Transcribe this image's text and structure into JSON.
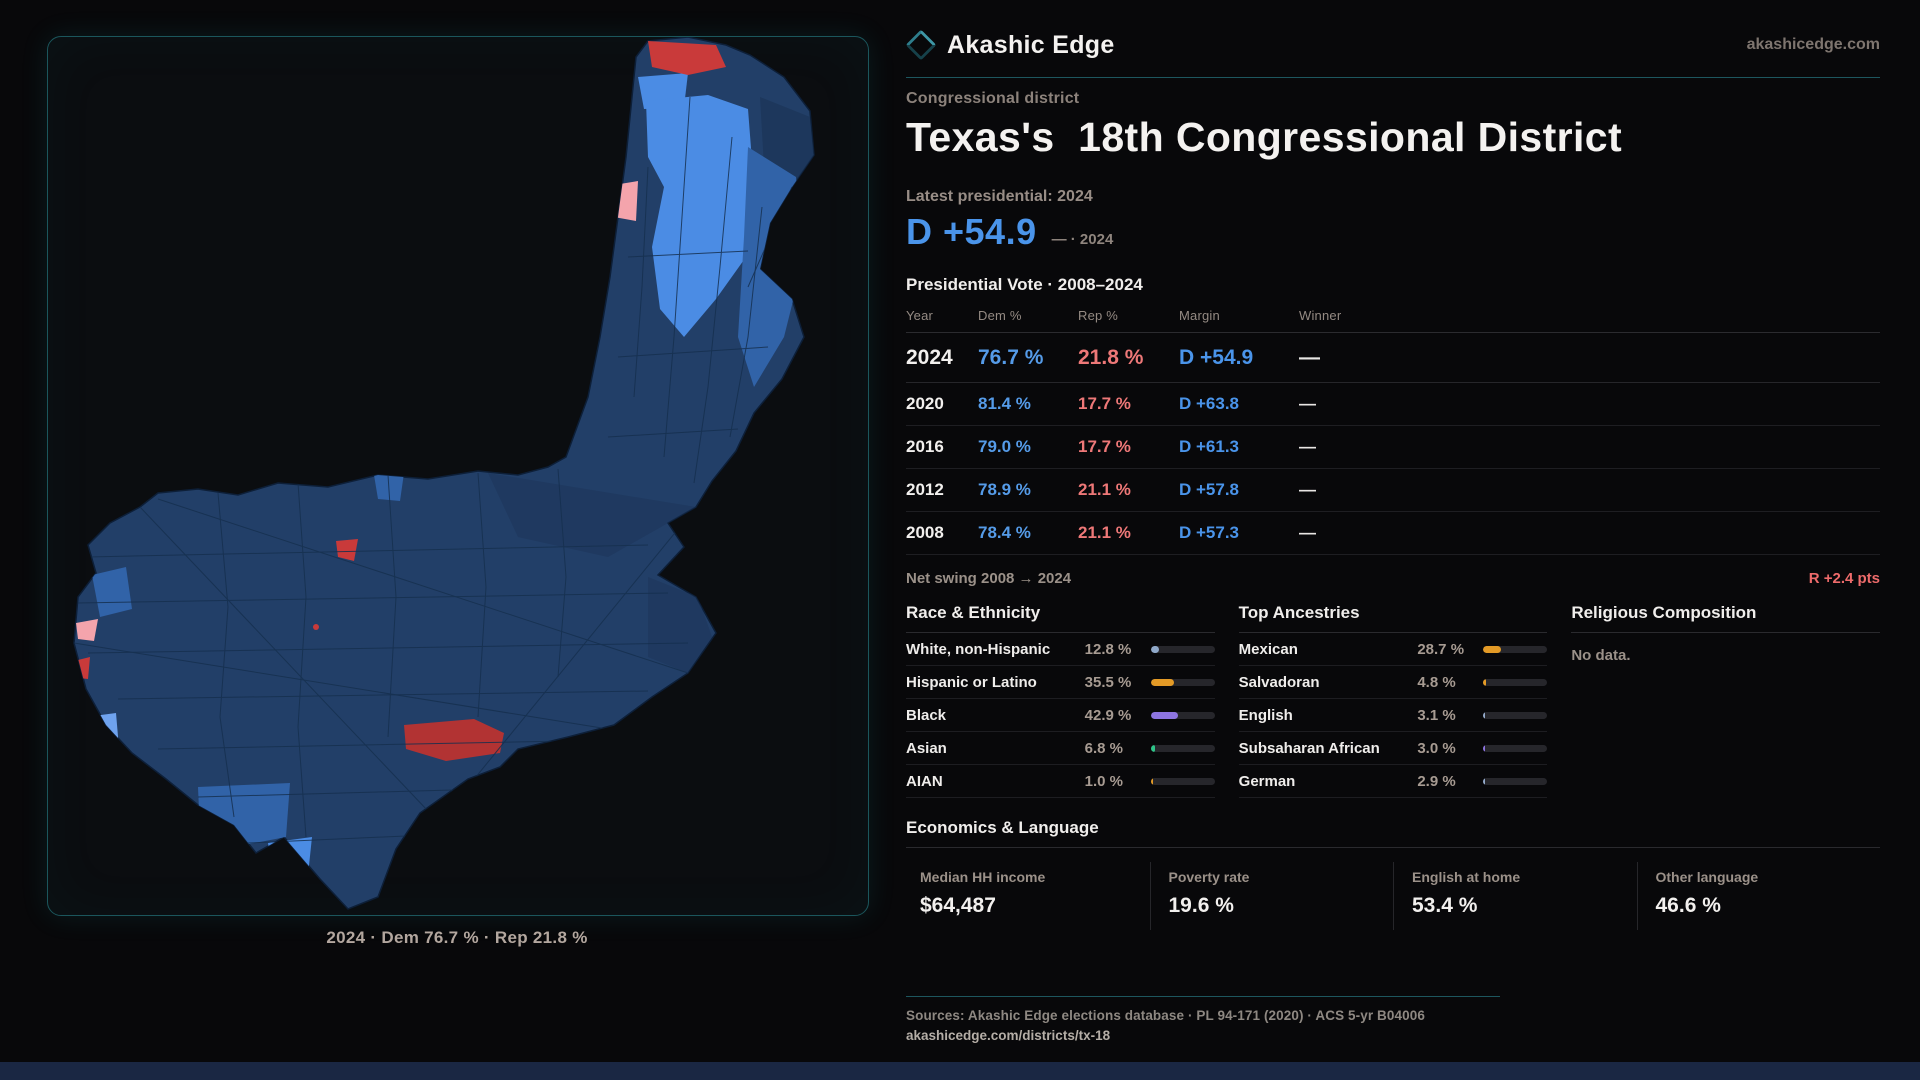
{
  "brand": {
    "name": "Akashic Edge",
    "site": "akashicedge.com"
  },
  "page": {
    "kicker": "Congressional district",
    "title": "Texas's  18th Congressional District",
    "latest_label": "Latest presidential: 2024",
    "headline_margin": "D +54.9",
    "headline_note": "— · 2024"
  },
  "vote_table": {
    "title": "Presidential Vote · 2008–2024",
    "columns": [
      "Year",
      "Dem %",
      "Rep %",
      "Margin",
      "Winner"
    ],
    "rows": [
      {
        "year": "2024",
        "dem": "76.7 %",
        "rep": "21.8 %",
        "margin": "D +54.9",
        "winner": "—"
      },
      {
        "year": "2020",
        "dem": "81.4 %",
        "rep": "17.7 %",
        "margin": "D +63.8",
        "winner": "—"
      },
      {
        "year": "2016",
        "dem": "79.0 %",
        "rep": "17.7 %",
        "margin": "D +61.3",
        "winner": "—"
      },
      {
        "year": "2012",
        "dem": "78.9 %",
        "rep": "21.1 %",
        "margin": "D +57.8",
        "winner": "—"
      },
      {
        "year": "2008",
        "dem": "78.4 %",
        "rep": "21.1 %",
        "margin": "D +57.3",
        "winner": "—"
      }
    ],
    "net_swing_label": "Net swing 2008 → 2024",
    "net_swing_value": "R +2.4 pts"
  },
  "race": {
    "title": "Race & Ethnicity",
    "rows": [
      {
        "label": "White, non-Hispanic",
        "value": "12.8 %",
        "pct": 12.8,
        "color": "#8FA8C9"
      },
      {
        "label": "Hispanic or Latino",
        "value": "35.5 %",
        "pct": 35.5,
        "color": "#E39A26"
      },
      {
        "label": "Black",
        "value": "42.9 %",
        "pct": 42.9,
        "color": "#8D74E0"
      },
      {
        "label": "Asian",
        "value": "6.8 %",
        "pct": 6.8,
        "color": "#2EC488"
      },
      {
        "label": "AIAN",
        "value": "1.0 %",
        "pct": 1.0,
        "color": "#E39A26"
      }
    ]
  },
  "ancestries": {
    "title": "Top Ancestries",
    "rows": [
      {
        "label": "Mexican",
        "value": "28.7 %",
        "pct": 28.7,
        "color": "#E39A26"
      },
      {
        "label": "Salvadoran",
        "value": "4.8 %",
        "pct": 4.8,
        "color": "#E39A26"
      },
      {
        "label": "English",
        "value": "3.1 %",
        "pct": 3.1,
        "color": "#93A9C9"
      },
      {
        "label": "Subsaharan African",
        "value": "3.0 %",
        "pct": 3.0,
        "color": "#8D74E0"
      },
      {
        "label": "German",
        "value": "2.9 %",
        "pct": 2.9,
        "color": "#93A9C9"
      }
    ]
  },
  "religion": {
    "title": "Religious Composition",
    "empty": "No data."
  },
  "economics": {
    "title": "Economics & Language",
    "stats": [
      {
        "label": "Median HH income",
        "value": "$64,487"
      },
      {
        "label": "Poverty rate",
        "value": "19.6 %"
      },
      {
        "label": "English at home",
        "value": "53.4 %"
      },
      {
        "label": "Other language",
        "value": "46.6 %"
      }
    ]
  },
  "footer": {
    "sources": "Sources: Akashic Edge elections database · PL 94-171 (2020) · ACS 5-yr B04006",
    "link": "akashicedge.com/districts/tx-18"
  },
  "map": {
    "caption": "2024 · Dem 76.7 % · Rep 21.8 %",
    "palette": {
      "base": "#223F68",
      "dark": "#1B3457",
      "mid": "#3163A8",
      "bright": "#4B8CE4",
      "light": "#6FA3EF",
      "red": "#C93A3A",
      "red_dark": "#B23333",
      "pink": "#F4A4AC",
      "line": "#16304F",
      "edge": "#0D1F38"
    }
  }
}
